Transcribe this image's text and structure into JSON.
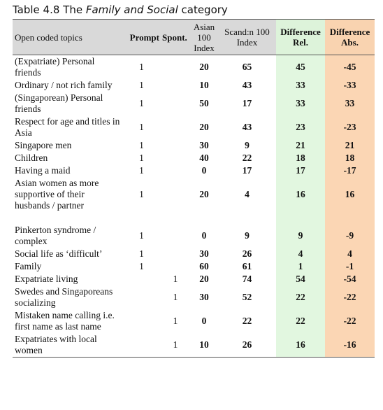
{
  "caption": {
    "prefix": "Table 4.8 The ",
    "emphasis": "Family and Social",
    "suffix": " category"
  },
  "table": {
    "header": {
      "topic": "Open coded topics",
      "prompt": "Prompt",
      "spont": "Spont.",
      "asian": "Asian 100 Index",
      "scand": "Scand:n 100 Index",
      "rel": "Difference Rel.",
      "abs": "Difference Abs."
    },
    "rows": [
      [
        "(Expatriate) Personal friends",
        1,
        null,
        20,
        65,
        45,
        -45
      ],
      [
        "Ordinary / not rich family",
        1,
        null,
        10,
        43,
        33,
        -33
      ],
      [
        "(Singaporean) Personal friends",
        1,
        null,
        50,
        17,
        33,
        33
      ],
      [
        "Respect for age and titles in Asia",
        1,
        null,
        20,
        43,
        23,
        -23
      ],
      [
        "Singapore men",
        1,
        null,
        30,
        9,
        21,
        21
      ],
      [
        "Children",
        1,
        null,
        40,
        22,
        18,
        18
      ],
      [
        "Having a maid",
        1,
        null,
        0,
        17,
        17,
        -17
      ],
      [
        "Asian women as more supportive of their husbands / partner",
        1,
        null,
        20,
        4,
        16,
        16
      ],
      [
        "Pinkerton syndrome / complex",
        1,
        null,
        0,
        9,
        9,
        -9
      ],
      [
        "Social life as ‘difficult’",
        1,
        null,
        30,
        26,
        4,
        4
      ],
      [
        "Family",
        1,
        null,
        60,
        61,
        1,
        -1
      ],
      [
        "Expatriate living",
        null,
        1,
        20,
        74,
        54,
        -54
      ],
      [
        "Swedes and Singaporeans socializing",
        null,
        1,
        30,
        52,
        22,
        -22
      ],
      [
        "Mistaken name calling i.e. first name as last name",
        null,
        1,
        0,
        22,
        22,
        -22
      ],
      [
        "Expatriates with local women",
        null,
        1,
        10,
        26,
        16,
        -16
      ]
    ]
  }
}
